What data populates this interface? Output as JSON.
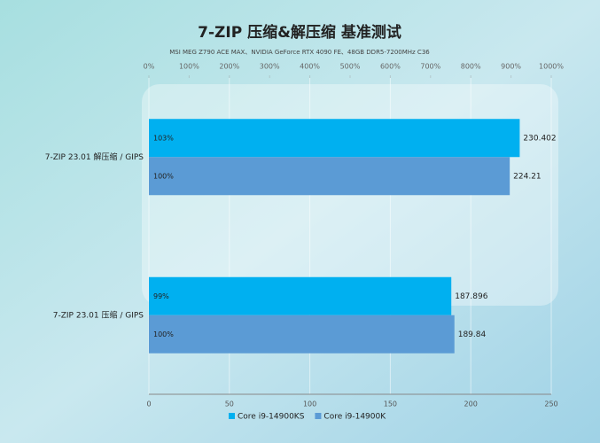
{
  "chart_data": {
    "type": "hbar",
    "title": "7-ZIP 压缩&解压缩 基准测试",
    "subtitle": "MSI MEG Z790 ACE MAX、NVIDIA GeForce RTX 4090 FE、48GB DDR5-7200MHz C36",
    "categories": [
      "7-ZIP 23.01 解压缩 / GIPS",
      "7-ZIP 23.01 压缩 / GIPS"
    ],
    "series": [
      {
        "name": "Core i9-14900KS",
        "color": "#00b0f0",
        "values": [
          230.402,
          187.896
        ],
        "percent_labels": [
          "103%",
          "99%"
        ]
      },
      {
        "name": "Core i9-14900K",
        "color": "#5b9bd5",
        "values": [
          224.21,
          189.84
        ],
        "percent_labels": [
          "100%",
          "100%"
        ]
      }
    ],
    "xlim": [
      0,
      250
    ],
    "xticks": [
      0,
      50,
      100,
      150,
      200,
      250
    ],
    "x2lim": [
      0,
      1000
    ],
    "x2ticks": [
      {
        "value": 0,
        "label": "0%"
      },
      {
        "value": 100,
        "label": "100%"
      },
      {
        "value": 200,
        "label": "200%"
      },
      {
        "value": 300,
        "label": "300%"
      },
      {
        "value": 400,
        "label": "400%"
      },
      {
        "value": 500,
        "label": "500%"
      },
      {
        "value": 600,
        "label": "600%"
      },
      {
        "value": 700,
        "label": "700%"
      },
      {
        "value": 800,
        "label": "800%"
      },
      {
        "value": 900,
        "label": "900%"
      },
      {
        "value": 1000,
        "label": "1000%"
      }
    ],
    "grid": true,
    "legend": "bottom"
  }
}
